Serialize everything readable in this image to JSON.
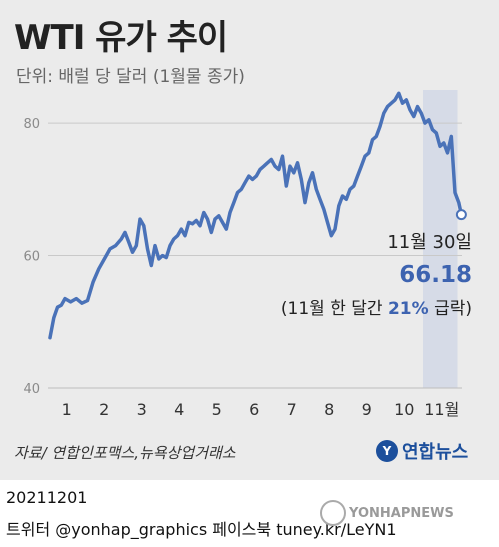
{
  "header": {
    "title": "WTI 유가 추이",
    "subtitle": "단위: 배럴 당 달러 (1월물 종가)"
  },
  "footer": {
    "source": "자료/ 연합인포맥스,뉴욕상업거래소",
    "logo": "연합뉴스",
    "date": "20211201",
    "credit": "트위터 @yonhap_graphics  페이스북 tuney.kr/LeYN1",
    "watermark": "YONHAPNEWS"
  },
  "colors": {
    "line": "#4a72b8",
    "accent": "#3d63b0",
    "highlight_band": "#d6dbe7",
    "background": "#ebebeb"
  },
  "chart_data": {
    "type": "line",
    "title": "WTI 유가 추이",
    "ylabel": "단위: 배럴 당 달러 (1월물 종가)",
    "ylim": [
      40,
      85
    ],
    "yticks": [
      40,
      60,
      80
    ],
    "xticks": [
      "1",
      "2",
      "3",
      "4",
      "5",
      "6",
      "7",
      "8",
      "9",
      "10",
      "11월"
    ],
    "grid": true,
    "highlight_period": "11월",
    "series": [
      {
        "x": [
          0.0,
          0.1,
          0.2,
          0.3,
          0.4,
          0.55,
          0.7,
          0.85,
          1.0,
          1.15,
          1.3,
          1.45,
          1.6,
          1.75,
          1.9,
          2.0,
          2.1,
          2.2,
          2.3,
          2.4,
          2.5,
          2.6,
          2.7,
          2.8,
          2.9,
          3.0,
          3.1,
          3.2,
          3.3,
          3.4,
          3.5,
          3.6,
          3.7,
          3.8,
          3.9,
          4.0,
          4.1,
          4.2,
          4.3,
          4.4,
          4.5,
          4.6,
          4.7,
          4.8,
          4.9,
          5.0,
          5.1,
          5.2,
          5.3,
          5.4,
          5.5,
          5.6,
          5.7,
          5.8,
          5.9,
          6.0,
          6.1,
          6.2,
          6.3,
          6.4,
          6.5,
          6.6,
          6.7,
          6.8,
          6.9,
          7.0,
          7.1,
          7.2,
          7.3,
          7.4,
          7.5,
          7.6,
          7.7,
          7.8,
          7.9,
          8.0,
          8.1,
          8.2,
          8.3,
          8.4,
          8.5,
          8.6,
          8.7,
          8.8,
          8.9,
          9.0,
          9.1,
          9.2,
          9.3,
          9.4,
          9.5,
          9.6,
          9.7,
          9.8,
          9.9,
          10.0,
          10.1,
          10.2,
          10.3,
          10.4,
          10.5,
          10.6,
          10.7,
          10.8,
          10.9,
          10.97
        ],
        "values": [
          47.6,
          50.6,
          52.2,
          52.5,
          53.5,
          53.0,
          53.5,
          52.8,
          53.2,
          56.0,
          58.0,
          59.5,
          61.0,
          61.5,
          62.5,
          63.5,
          62.0,
          60.5,
          61.5,
          65.5,
          64.5,
          61.0,
          58.5,
          61.5,
          59.5,
          60.0,
          59.7,
          61.5,
          62.5,
          63.0,
          64.0,
          63.0,
          65.0,
          64.8,
          65.3,
          64.5,
          66.5,
          65.5,
          63.5,
          65.5,
          66.0,
          65.0,
          64.0,
          66.5,
          68.0,
          69.5,
          70.0,
          71.0,
          72.0,
          71.5,
          72.0,
          73.0,
          73.5,
          74.0,
          74.5,
          73.5,
          73.0,
          75.0,
          70.5,
          73.5,
          72.5,
          74.0,
          71.5,
          68.0,
          71.0,
          72.5,
          70.0,
          68.5,
          67.0,
          65.0,
          63.0,
          64.0,
          67.5,
          69.0,
          68.5,
          70.0,
          70.5,
          72.0,
          73.5,
          75.0,
          75.5,
          77.5,
          78.0,
          79.5,
          81.5,
          82.5,
          83.0,
          83.5,
          84.5,
          83.0,
          83.5,
          82.0,
          81.0,
          82.5,
          81.5,
          80.0,
          80.5,
          79.0,
          78.5,
          76.5,
          77.0,
          75.5,
          78.0,
          69.5,
          68.0,
          66.18
        ]
      }
    ],
    "annotation": {
      "label": "11월 30일",
      "value": "66.18",
      "note_prefix": "(11월 한 달간 ",
      "note_pct": "21%",
      "note_suffix": " 급락)"
    }
  }
}
